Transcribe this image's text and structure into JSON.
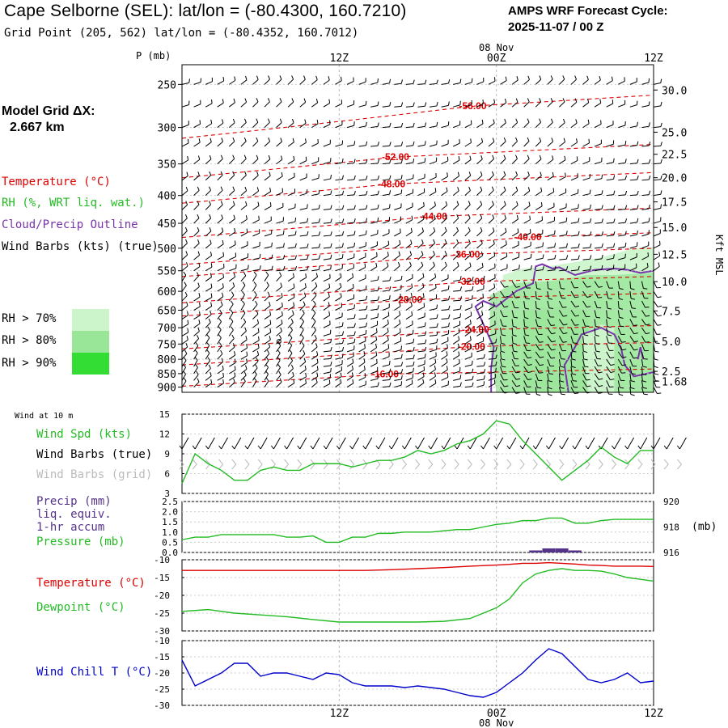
{
  "header": {
    "title": "Cape Selborne (SEL):  lat/lon = (-80.4300, 160.7210)",
    "subtitle": "Grid Point (205, 562) lat/lon = (-80.4352, 160.7012)",
    "cycle_line1": "AMPS WRF Forecast Cycle:",
    "cycle_line2": "2025-11-07 / 00  Z"
  },
  "model_grid": {
    "label": "Model Grid ΔX:",
    "value": "2.667 km"
  },
  "legend": {
    "temperature": "Temperature (°C)",
    "rh": "RH (%, WRT liq. wat.)",
    "cloud": "Cloud/Precip Outline",
    "wind": "Wind Barbs (kts) (true)",
    "rh70": "RH > 70%",
    "rh80": "RH > 80%",
    "rh90": "RH > 90%"
  },
  "colors": {
    "temperature": "#dd0000",
    "rh_green": "#22bb22",
    "cloud": "#7733aa",
    "rh70": "#ccf5cc",
    "rh80": "#99e699",
    "rh90": "#33dd33",
    "dewpoint": "#22bb22",
    "windchill": "#0000cc",
    "precip": "#553388",
    "grid_barb": "#bbbbbb"
  },
  "time_axis": {
    "top_labels": [
      "12Z",
      "00Z",
      "12Z"
    ],
    "date_top": "08 Nov",
    "bottom_labels": [
      "12Z",
      "00Z",
      "12Z"
    ],
    "date_bottom": "08 Nov",
    "range_hours": [
      0,
      36
    ],
    "label_hours": [
      12,
      24,
      36
    ]
  },
  "chart_data": [
    {
      "type": "line",
      "name": "upper-air-cross-section",
      "ylabel": "P (mb)",
      "y_ticks": [
        250,
        300,
        350,
        400,
        450,
        500,
        550,
        600,
        650,
        700,
        750,
        800,
        850,
        900
      ],
      "ylim": [
        230,
        920
      ],
      "right_axis_label": "Kft MSL",
      "right_ticks": [
        {
          "label": "30.0",
          "p": 256
        },
        {
          "label": "25.0",
          "p": 306
        },
        {
          "label": "22.5",
          "p": 336
        },
        {
          "label": "20.0",
          "p": 371
        },
        {
          "label": "17.5",
          "p": 411
        },
        {
          "label": "15.0",
          "p": 458
        },
        {
          "label": "12.5",
          "p": 513
        },
        {
          "label": "10.0",
          "p": 576
        },
        {
          "label": "7.5",
          "p": 652
        },
        {
          "label": "5.0",
          "p": 742
        },
        {
          "label": "2.5",
          "p": 842
        },
        {
          "label": "1.68",
          "p": 878
        }
      ],
      "isotherm_labels": [
        {
          "label": "-56.00",
          "h": 22.2,
          "p": 274
        },
        {
          "label": "-52.00",
          "h": 16.3,
          "p": 340
        },
        {
          "label": "-48.00",
          "h": 16.0,
          "p": 381
        },
        {
          "label": "-44.00",
          "h": 19.2,
          "p": 437
        },
        {
          "label": "-40.00",
          "h": 26.4,
          "p": 477
        },
        {
          "label": "-36.00",
          "h": 21.7,
          "p": 513
        },
        {
          "label": "-32.00",
          "h": 22.1,
          "p": 576
        },
        {
          "label": "-28.00",
          "h": 17.3,
          "p": 622
        },
        {
          "label": "-24.00",
          "h": 22.4,
          "p": 706
        },
        {
          "label": "-20.00",
          "h": 22.1,
          "p": 758
        },
        {
          "label": "-16.00",
          "h": 15.5,
          "p": 852
        }
      ]
    },
    {
      "type": "line",
      "name": "wind-10m",
      "title": "Wind at 10 m",
      "legend": [
        "Wind Spd (kts)",
        "Wind Barbs (true)",
        "Wind Barbs (grid)"
      ],
      "y_ticks": [
        3,
        6,
        9,
        12,
        15
      ],
      "ylim": [
        3,
        15
      ],
      "x": [
        0,
        1,
        2,
        3,
        4,
        5,
        6,
        7,
        8,
        9,
        10,
        11,
        12,
        13,
        14,
        15,
        16,
        17,
        18,
        19,
        20,
        21,
        22,
        23,
        24,
        25,
        26,
        27,
        28,
        29,
        30,
        31,
        32,
        33,
        34,
        35,
        36
      ],
      "values": [
        4.5,
        9,
        7.5,
        6.5,
        5,
        5,
        6.5,
        7,
        6.5,
        6.5,
        7.5,
        7.5,
        7.5,
        7,
        7.5,
        8,
        8,
        8.5,
        9.5,
        9,
        9.5,
        10.5,
        11,
        12,
        14,
        13.5,
        11,
        9,
        7,
        5,
        6.5,
        8,
        10,
        8.5,
        7.5,
        9.5,
        9.5
      ]
    },
    {
      "type": "bar",
      "name": "precip-pressure",
      "legend": [
        "Precip (mm)",
        "liq. equiv.",
        "1-hr accum",
        "Pressure (mb)"
      ],
      "precip_ticks": [
        "0.0",
        "0.5",
        "1.0",
        "1.5",
        "2.0",
        "2.5"
      ],
      "precip_ylim": [
        0,
        2.5
      ],
      "pressure_ticks": [
        "916",
        "918",
        "920"
      ],
      "pressure_ylim": [
        916,
        920
      ],
      "pressure_unit": "(mb)",
      "x": [
        0,
        1,
        2,
        3,
        4,
        5,
        6,
        7,
        8,
        9,
        10,
        11,
        12,
        13,
        14,
        15,
        16,
        17,
        18,
        19,
        20,
        21,
        22,
        23,
        24,
        25,
        26,
        27,
        28,
        29,
        30,
        31,
        32,
        33,
        34,
        35,
        36
      ],
      "pressure": [
        917.0,
        917.2,
        917.2,
        917.4,
        917.4,
        917.4,
        917.4,
        917.4,
        917.2,
        917.2,
        917.3,
        916.8,
        916.8,
        917.2,
        917.2,
        917.5,
        917.5,
        917.6,
        917.6,
        917.6,
        917.7,
        917.8,
        917.8,
        918.0,
        918.2,
        918.3,
        918.5,
        918.5,
        918.7,
        918.7,
        918.3,
        918.3,
        918.5,
        918.6,
        918.6,
        918.6,
        918.6
      ],
      "precip_hours": [
        27,
        28,
        29,
        30
      ],
      "precip_values": [
        0.1,
        0.2,
        0.2,
        0.1
      ]
    },
    {
      "type": "line",
      "name": "temp-dewpoint",
      "legend": [
        "Temperature (°C)",
        "Dewpoint (°C)"
      ],
      "y_ticks": [
        -30,
        -25,
        -20,
        -15,
        -10
      ],
      "ylim": [
        -30,
        -10
      ],
      "x": [
        0,
        2,
        4,
        6,
        8,
        10,
        12,
        14,
        16,
        18,
        20,
        22,
        24,
        25,
        26,
        27,
        28,
        29,
        30,
        31,
        32,
        33,
        34,
        35,
        36
      ],
      "temperature": [
        -13.0,
        -13.0,
        -13.0,
        -13.0,
        -13.0,
        -13.0,
        -13.0,
        -13.0,
        -12.8,
        -12.5,
        -12.2,
        -11.8,
        -11.5,
        -11.3,
        -11.0,
        -11.0,
        -10.8,
        -11.0,
        -11.2,
        -11.5,
        -11.6,
        -11.8,
        -11.8,
        -11.8,
        -11.9
      ],
      "dewpoint": [
        -24.5,
        -24.0,
        -25.0,
        -25.5,
        -26.0,
        -26.8,
        -27.5,
        -27.5,
        -27.5,
        -27.5,
        -27.3,
        -26.5,
        -23.5,
        -21.0,
        -16.5,
        -14.0,
        -13.0,
        -12.5,
        -13.0,
        -13.0,
        -13.2,
        -14.0,
        -15.0,
        -15.5,
        -16.0
      ]
    },
    {
      "type": "line",
      "name": "wind-chill",
      "legend": [
        "Wind Chill T (°C)"
      ],
      "y_ticks": [
        -30,
        -25,
        -20,
        -15,
        -10
      ],
      "ylim": [
        -30,
        -10
      ],
      "x": [
        0,
        1,
        2,
        3,
        4,
        5,
        6,
        7,
        8,
        9,
        10,
        11,
        12,
        13,
        14,
        15,
        16,
        17,
        18,
        19,
        20,
        21,
        22,
        23,
        24,
        25,
        26,
        27,
        28,
        29,
        30,
        31,
        32,
        33,
        34,
        35,
        36
      ],
      "values": [
        -16,
        -24,
        -22,
        -20,
        -17,
        -17,
        -21,
        -20,
        -20,
        -21,
        -22,
        -20,
        -20.5,
        -23,
        -24,
        -24,
        -24,
        -24.5,
        -24,
        -24.5,
        -25,
        -26,
        -27,
        -27.5,
        -26,
        -23,
        -20,
        -16,
        -12.5,
        -14,
        -18,
        -22,
        -23,
        -22,
        -20,
        -23,
        -22.5
      ]
    }
  ]
}
